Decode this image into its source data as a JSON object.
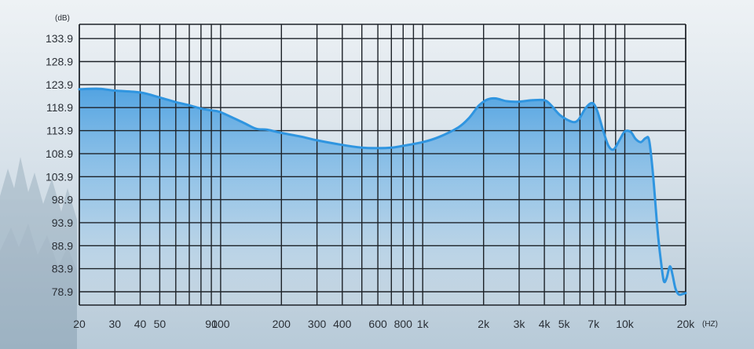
{
  "chart_data": {
    "type": "area",
    "title": "",
    "y_unit": "(dB)",
    "x_unit": "(HZ)",
    "x_scale": "log",
    "xlim": [
      20,
      20000
    ],
    "ylim": [
      76,
      137
    ],
    "grid": true,
    "accent_color": "#2f95e0",
    "y_ticks": [
      {
        "value": 133.9,
        "label": "133.9"
      },
      {
        "value": 128.9,
        "label": "128.9"
      },
      {
        "value": 123.9,
        "label": "123.9"
      },
      {
        "value": 118.9,
        "label": "118.9"
      },
      {
        "value": 113.9,
        "label": "113.9"
      },
      {
        "value": 108.9,
        "label": "108.9"
      },
      {
        "value": 103.9,
        "label": "103.9"
      },
      {
        "value": 98.9,
        "label": "98.9"
      },
      {
        "value": 93.9,
        "label": "93.9"
      },
      {
        "value": 88.9,
        "label": "88.9"
      },
      {
        "value": 83.9,
        "label": "83.9"
      },
      {
        "value": 78.9,
        "label": "78.9"
      }
    ],
    "x_ticks": [
      {
        "value": 20,
        "label": "20"
      },
      {
        "value": 30,
        "label": "30"
      },
      {
        "value": 40,
        "label": "40"
      },
      {
        "value": 50,
        "label": "50"
      },
      {
        "value": 90,
        "label": "90"
      },
      {
        "value": 100,
        "label": "100"
      },
      {
        "value": 200,
        "label": "200"
      },
      {
        "value": 300,
        "label": "300"
      },
      {
        "value": 400,
        "label": "400"
      },
      {
        "value": 600,
        "label": "600"
      },
      {
        "value": 800,
        "label": "800"
      },
      {
        "value": 1000,
        "label": "1k"
      },
      {
        "value": 2000,
        "label": "2k"
      },
      {
        "value": 3000,
        "label": "3k"
      },
      {
        "value": 4000,
        "label": "4k"
      },
      {
        "value": 5000,
        "label": "5k"
      },
      {
        "value": 7000,
        "label": "7k"
      },
      {
        "value": 10000,
        "label": "10k"
      },
      {
        "value": 20000,
        "label": "20k"
      }
    ],
    "x_gridlines": [
      20,
      30,
      40,
      50,
      60,
      70,
      80,
      90,
      100,
      200,
      300,
      400,
      500,
      600,
      700,
      800,
      900,
      1000,
      2000,
      3000,
      4000,
      5000,
      6000,
      7000,
      8000,
      9000,
      10000,
      20000
    ],
    "series": [
      {
        "points": [
          [
            20,
            122.9
          ],
          [
            25,
            123.0
          ],
          [
            30,
            122.6
          ],
          [
            40,
            122.2
          ],
          [
            50,
            121.1
          ],
          [
            60,
            120.1
          ],
          [
            70,
            119.4
          ],
          [
            80,
            118.7
          ],
          [
            90,
            118.3
          ],
          [
            100,
            117.9
          ],
          [
            130,
            115.6
          ],
          [
            150,
            114.3
          ],
          [
            170,
            114.1
          ],
          [
            200,
            113.4
          ],
          [
            250,
            112.6
          ],
          [
            300,
            111.8
          ],
          [
            400,
            110.8
          ],
          [
            500,
            110.2
          ],
          [
            600,
            110.1
          ],
          [
            700,
            110.2
          ],
          [
            800,
            110.6
          ],
          [
            1000,
            111.4
          ],
          [
            1200,
            112.5
          ],
          [
            1500,
            114.6
          ],
          [
            1700,
            116.7
          ],
          [
            1900,
            119.4
          ],
          [
            2100,
            120.7
          ],
          [
            2300,
            120.9
          ],
          [
            2600,
            120.3
          ],
          [
            3000,
            120.2
          ],
          [
            3500,
            120.5
          ],
          [
            4000,
            120.5
          ],
          [
            4300,
            119.5
          ],
          [
            4800,
            117.2
          ],
          [
            5500,
            115.8
          ],
          [
            5900,
            116.3
          ],
          [
            6400,
            118.8
          ],
          [
            6900,
            119.9
          ],
          [
            7300,
            118.2
          ],
          [
            7800,
            114.0
          ],
          [
            8300,
            110.6
          ],
          [
            8800,
            109.8
          ],
          [
            9400,
            111.8
          ],
          [
            10000,
            113.7
          ],
          [
            10700,
            113.6
          ],
          [
            11300,
            112.1
          ],
          [
            12000,
            111.4
          ],
          [
            12700,
            112.3
          ],
          [
            13200,
            111.7
          ],
          [
            13800,
            104.2
          ],
          [
            14500,
            92.5
          ],
          [
            15100,
            85.4
          ],
          [
            15600,
            81.2
          ],
          [
            16100,
            81.9
          ],
          [
            16700,
            84.4
          ],
          [
            17200,
            82.7
          ],
          [
            17800,
            79.6
          ],
          [
            18500,
            78.3
          ],
          [
            19300,
            78.4
          ],
          [
            20000,
            78.6
          ]
        ]
      }
    ]
  }
}
